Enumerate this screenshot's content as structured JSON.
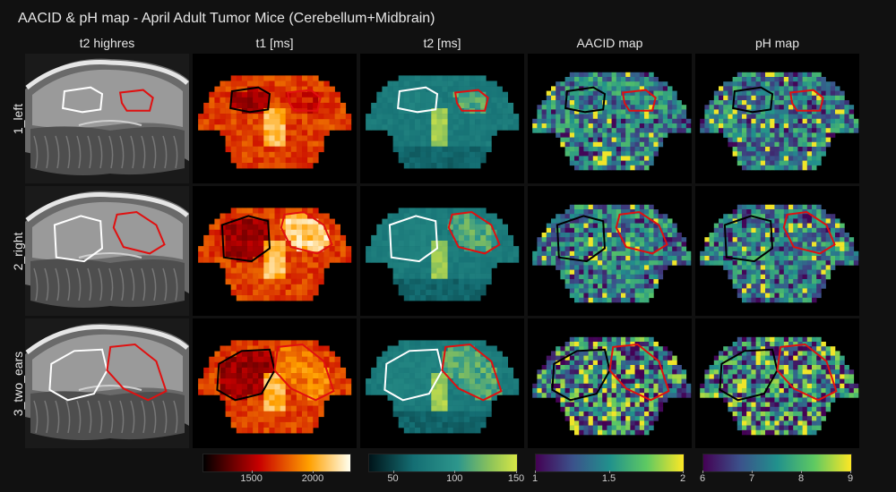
{
  "chart_data": {
    "type": "heatmap",
    "title": "AACID & pH map - April Adult Tumor Mice (Cerebellum+Midbrain)",
    "columns": [
      "t2 highres",
      "t1 [ms]",
      "t2 [ms]",
      "AACID map",
      "pH map"
    ],
    "rows": [
      "1_left",
      "2_right",
      "3_two_ears"
    ],
    "colorbars": [
      {
        "column": "t1 [ms]",
        "colormap": "hot",
        "range": [
          1100,
          2300
        ],
        "ticks": [
          "1500",
          "2000"
        ]
      },
      {
        "column": "t2 [ms]",
        "colormap": "teal-yellow",
        "range": [
          30,
          150
        ],
        "ticks": [
          "50",
          "100",
          "150"
        ]
      },
      {
        "column": "AACID map",
        "colormap": "viridis",
        "range": [
          1,
          2
        ],
        "ticks": [
          "1",
          "1.5",
          "2"
        ]
      },
      {
        "column": "pH map",
        "colormap": "viridis",
        "range": [
          6,
          9
        ],
        "ticks": [
          "6",
          "7",
          "8",
          "9"
        ]
      }
    ],
    "roi_colors": {
      "left_roi_bright": "#ffffff",
      "left_roi_map": "#000000",
      "tumor_roi": "#e01010"
    }
  }
}
